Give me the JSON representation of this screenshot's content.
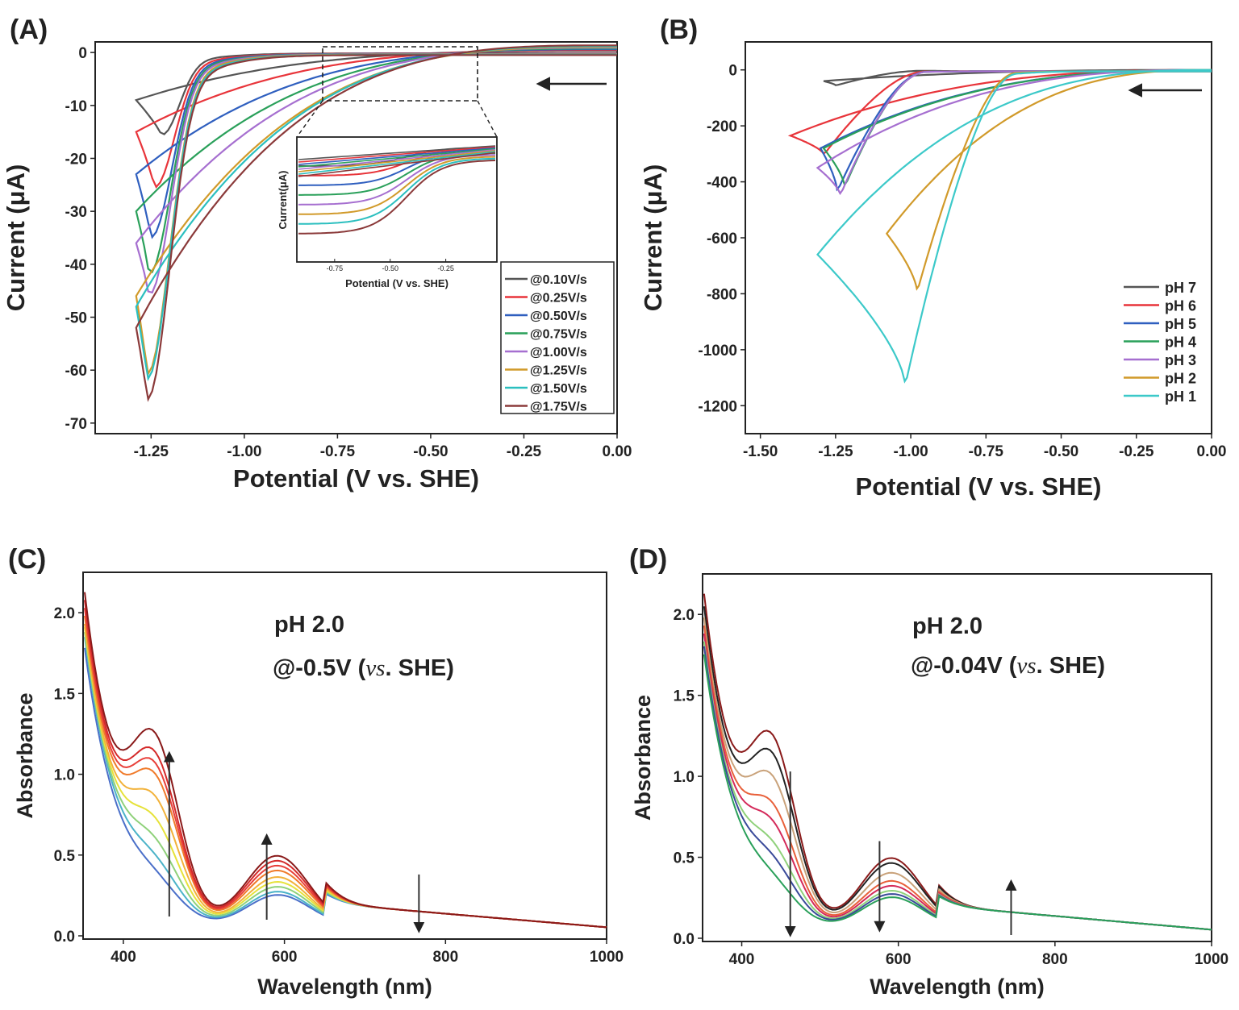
{
  "chart_data": [
    {
      "panel": "(A)",
      "type": "line",
      "xlabel": "Potential (V vs. SHE)",
      "ylabel": "Current (μA)",
      "xlim": [
        -1.4,
        0.0
      ],
      "ylim": [
        -72,
        2
      ],
      "xticks": [
        "-1.25",
        "-1.00",
        "-0.75",
        "-0.50",
        "-0.25",
        "0.00"
      ],
      "yticks": [
        "0",
        "-10",
        "-20",
        "-30",
        "-40",
        "-50",
        "-60",
        "-70"
      ],
      "legend_position": "bottom-right",
      "arrow": "right-to-left",
      "series": [
        {
          "name": "@0.10V/s",
          "color": "#555555",
          "peak_x": -1.22,
          "peak_y": -16,
          "end_x": -1.29,
          "end_y": -9,
          "fwd_mid": -2.5,
          "rev_mid": 0
        },
        {
          "name": "@0.25V/s",
          "color": "#e8343a",
          "peak_x": -1.24,
          "peak_y": -26,
          "end_x": -1.29,
          "end_y": -15,
          "fwd_mid": -3.5,
          "rev_mid": 0
        },
        {
          "name": "@0.50V/s",
          "color": "#2f5fbf",
          "peak_x": -1.25,
          "peak_y": -35.5,
          "end_x": -1.29,
          "end_y": -23,
          "fwd_mid": -4.3,
          "rev_mid": 0
        },
        {
          "name": "@0.75V/s",
          "color": "#2aa05a",
          "peak_x": -1.255,
          "peak_y": -42.5,
          "end_x": -1.29,
          "end_y": -30,
          "fwd_mid": -5.0,
          "rev_mid": 0
        },
        {
          "name": "@1.00V/s",
          "color": "#a66fd0",
          "peak_x": -1.255,
          "peak_y": -46.5,
          "end_x": -1.29,
          "end_y": -36,
          "fwd_mid": -5.6,
          "rev_mid": 0
        },
        {
          "name": "@1.25V/s",
          "color": "#d19a2a",
          "peak_x": -1.26,
          "peak_y": -61.5,
          "end_x": -1.29,
          "end_y": -46,
          "fwd_mid": -6.4,
          "rev_mid": 0
        },
        {
          "name": "@1.50V/s",
          "color": "#2bbfbf",
          "peak_x": -1.26,
          "peak_y": -62.5,
          "end_x": -1.29,
          "end_y": -48,
          "fwd_mid": -7.2,
          "rev_mid": 0
        },
        {
          "name": "@1.75V/s",
          "color": "#8b3a3a",
          "peak_x": -1.26,
          "peak_y": -66.5,
          "end_x": -1.29,
          "end_y": -52,
          "fwd_mid": -8.0,
          "rev_mid": 0
        }
      ],
      "inset": {
        "xlabel": "Potential (V vs. SHE)",
        "ylabel": "Current(μA)",
        "xticks": [
          "-0.75",
          "-0.50",
          "-0.25"
        ]
      }
    },
    {
      "panel": "(B)",
      "type": "line",
      "xlabel": "Potential (V vs. SHE)",
      "ylabel": "Current (μA)",
      "xlim": [
        -1.55,
        0.0
      ],
      "ylim": [
        -1300,
        100
      ],
      "xticks": [
        "-1.50",
        "-1.25",
        "-1.00",
        "-0.75",
        "-0.50",
        "-0.25",
        "0.00"
      ],
      "yticks": [
        "0",
        "-200",
        "-400",
        "-600",
        "-800",
        "-1000",
        "-1200"
      ],
      "legend_position": "bottom-right",
      "arrow": "right-to-left",
      "series": [
        {
          "name": "pH 7",
          "color": "#555555",
          "peak_x": -1.25,
          "peak_y": -55,
          "end_x": -1.29,
          "end_y": -40,
          "onset": -0.95
        },
        {
          "name": "pH 6",
          "color": "#e8343a",
          "peak_x": -1.29,
          "peak_y": -300,
          "end_x": -1.4,
          "end_y": -235,
          "onset": -0.95
        },
        {
          "name": "pH 5",
          "color": "#2f5fbf",
          "peak_x": -1.245,
          "peak_y": -430,
          "end_x": -1.3,
          "end_y": -280,
          "onset": -0.95
        },
        {
          "name": "pH 4",
          "color": "#2aa05a",
          "peak_x": -1.22,
          "peak_y": -415,
          "end_x": -1.29,
          "end_y": -280,
          "onset": -0.95
        },
        {
          "name": "pH 3",
          "color": "#a66fd0",
          "peak_x": -1.235,
          "peak_y": -445,
          "end_x": -1.31,
          "end_y": -350,
          "onset": -0.95
        },
        {
          "name": "pH 2",
          "color": "#d19a2a",
          "peak_x": -0.98,
          "peak_y": -785,
          "end_x": -1.08,
          "end_y": -585,
          "onset": -0.65
        },
        {
          "name": "pH 1",
          "color": "#3cc9c9",
          "peak_x": -1.02,
          "peak_y": -1115,
          "end_x": -1.31,
          "end_y": -660,
          "onset": -0.65
        }
      ]
    },
    {
      "panel": "(C)",
      "type": "line",
      "xlabel": "Wavelength (nm)",
      "ylabel": "Absorbance",
      "xlim": [
        350,
        1000
      ],
      "ylim": [
        -0.02,
        2.25
      ],
      "xticks": [
        "400",
        "600",
        "800",
        "1000"
      ],
      "yticks": [
        "0.0",
        "0.5",
        "1.0",
        "1.5",
        "2.0"
      ],
      "annotation": [
        "pH 2.0",
        "@-0.5V (",
        "vs",
        ". SHE)"
      ],
      "arrows": [
        {
          "x": 457,
          "from": 0.12,
          "to": 1.13
        },
        {
          "x": 578,
          "from": 0.1,
          "to": 0.62
        },
        {
          "x": 767,
          "from": 0.38,
          "to": 0.03
        }
      ],
      "series": [
        {
          "color": "#4a6fc9",
          "shoulder": 0.12,
          "peak600": 0.2,
          "start": 1.85
        },
        {
          "color": "#4bb3c8",
          "shoulder": 0.2,
          "peak600": 0.22,
          "start": 1.92
        },
        {
          "color": "#8fd17a",
          "shoulder": 0.3,
          "peak600": 0.25,
          "start": 1.95
        },
        {
          "color": "#e6e23a",
          "shoulder": 0.42,
          "peak600": 0.28,
          "start": 1.98
        },
        {
          "color": "#f2b23a",
          "shoulder": 0.55,
          "peak600": 0.31,
          "start": 2.0
        },
        {
          "color": "#f07a2a",
          "shoulder": 0.68,
          "peak600": 0.35,
          "start": 2.05
        },
        {
          "color": "#e8403a",
          "shoulder": 0.74,
          "peak600": 0.38,
          "start": 2.1
        },
        {
          "color": "#d42a2a",
          "shoulder": 0.8,
          "peak600": 0.41,
          "start": 2.15
        },
        {
          "color": "#8a1a1a",
          "shoulder": 0.91,
          "peak600": 0.44,
          "start": 2.2
        }
      ]
    },
    {
      "panel": "(D)",
      "type": "line",
      "xlabel": "Wavelength (nm)",
      "ylabel": "Absorbance",
      "xlim": [
        350,
        1000
      ],
      "ylim": [
        -0.02,
        2.25
      ],
      "xticks": [
        "400",
        "600",
        "800",
        "1000"
      ],
      "yticks": [
        "0.0",
        "0.5",
        "1.0",
        "1.5",
        "2.0"
      ],
      "annotation": [
        "pH 2.0",
        "@-0.04V (",
        "vs",
        ". SHE)"
      ],
      "arrows": [
        {
          "x": 462,
          "from": 1.03,
          "to": 0.02
        },
        {
          "x": 576,
          "from": 0.6,
          "to": 0.05
        },
        {
          "x": 744,
          "from": 0.02,
          "to": 0.35
        }
      ],
      "series": [
        {
          "color": "#8a1a1a",
          "shoulder": 0.91,
          "peak600": 0.44,
          "start": 2.2
        },
        {
          "color": "#222222",
          "shoulder": 0.81,
          "peak600": 0.41,
          "start": 2.12
        },
        {
          "color": "#c9a27a",
          "shoulder": 0.68,
          "peak600": 0.35,
          "start": 2.05
        },
        {
          "color": "#e8603a",
          "shoulder": 0.52,
          "peak600": 0.3,
          "start": 2.0
        },
        {
          "color": "#d42a5a",
          "shoulder": 0.42,
          "peak600": 0.27,
          "start": 1.95
        },
        {
          "color": "#8fd17a",
          "shoulder": 0.3,
          "peak600": 0.24,
          "start": 1.9
        },
        {
          "color": "#3a4a9a",
          "shoulder": 0.22,
          "peak600": 0.22,
          "start": 1.87
        },
        {
          "color": "#2aa05a",
          "shoulder": 0.12,
          "peak600": 0.2,
          "start": 1.82
        }
      ]
    }
  ]
}
